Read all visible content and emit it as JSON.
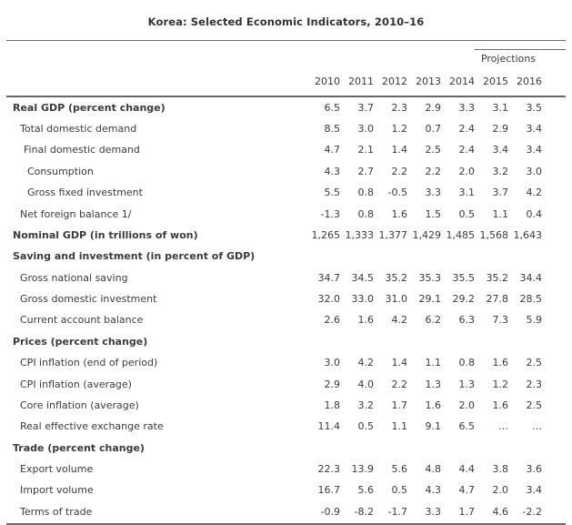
{
  "title": "Korea: Selected Economic Indicators, 2010–16",
  "colors": {
    "rule": "#6e6e6e",
    "text": "#3b3b3b",
    "background": "#ffffff"
  },
  "table": {
    "projections_label": "Projections",
    "years": [
      "2010",
      "2011",
      "2012",
      "2013",
      "2014",
      "2015",
      "2016"
    ],
    "rows": [
      {
        "label": "Real GDP (percent change)",
        "bold": true,
        "indent": 0,
        "values": [
          "6.5",
          "3.7",
          "2.3",
          "2.9",
          "3.3",
          "3.1",
          "3.5"
        ]
      },
      {
        "label": "Total domestic demand",
        "bold": false,
        "indent": 1,
        "values": [
          "8.5",
          "3.0",
          "1.2",
          "0.7",
          "2.4",
          "2.9",
          "3.4"
        ]
      },
      {
        "label": "Final domestic demand",
        "bold": false,
        "indent": 2,
        "values": [
          "4.7",
          "2.1",
          "1.4",
          "2.5",
          "2.4",
          "3.4",
          "3.4"
        ]
      },
      {
        "label": "Consumption",
        "bold": false,
        "indent": 3,
        "values": [
          "4.3",
          "2.7",
          "2.2",
          "2.2",
          "2.0",
          "3.2",
          "3.0"
        ]
      },
      {
        "label": "Gross fixed investment",
        "bold": false,
        "indent": 3,
        "values": [
          "5.5",
          "0.8",
          "-0.5",
          "3.3",
          "3.1",
          "3.7",
          "4.2"
        ]
      },
      {
        "label": "Net foreign balance 1/",
        "bold": false,
        "indent": 1,
        "values": [
          "-1.3",
          "0.8",
          "1.6",
          "1.5",
          "0.5",
          "1.1",
          "0.4"
        ]
      },
      {
        "label": "Nominal GDP (in trillions of won)",
        "bold": true,
        "indent": 0,
        "values": [
          "1,265",
          "1,333",
          "1,377",
          "1,429",
          "1,485",
          "1,568",
          "1,643"
        ]
      },
      {
        "label": "Saving and investment (in percent of GDP)",
        "bold": true,
        "indent": 0,
        "values": [
          "",
          "",
          "",
          "",
          "",
          "",
          ""
        ]
      },
      {
        "label": "Gross national saving",
        "bold": false,
        "indent": 1,
        "values": [
          "34.7",
          "34.5",
          "35.2",
          "35.3",
          "35.5",
          "35.2",
          "34.4"
        ]
      },
      {
        "label": "Gross domestic investment",
        "bold": false,
        "indent": 1,
        "values": [
          "32.0",
          "33.0",
          "31.0",
          "29.1",
          "29.2",
          "27.8",
          "28.5"
        ]
      },
      {
        "label": "Current account balance",
        "bold": false,
        "indent": 1,
        "values": [
          "2.6",
          "1.6",
          "4.2",
          "6.2",
          "6.3",
          "7.3",
          "5.9"
        ]
      },
      {
        "label": "Prices (percent change)",
        "bold": true,
        "indent": 0,
        "values": [
          "",
          "",
          "",
          "",
          "",
          "",
          ""
        ]
      },
      {
        "label": "CPI inflation (end of period)",
        "bold": false,
        "indent": 1,
        "values": [
          "3.0",
          "4.2",
          "1.4",
          "1.1",
          "0.8",
          "1.6",
          "2.5"
        ]
      },
      {
        "label": "CPI inflation (average)",
        "bold": false,
        "indent": 1,
        "values": [
          "2.9",
          "4.0",
          "2.2",
          "1.3",
          "1.3",
          "1.2",
          "2.3"
        ]
      },
      {
        "label": "Core inflation (average)",
        "bold": false,
        "indent": 1,
        "values": [
          "1.8",
          "3.2",
          "1.7",
          "1.6",
          "2.0",
          "1.6",
          "2.5"
        ]
      },
      {
        "label": "Real effective exchange rate",
        "bold": false,
        "indent": 1,
        "values": [
          "11.4",
          "0.5",
          "1.1",
          "9.1",
          "6.5",
          "…",
          "…"
        ]
      },
      {
        "label": "Trade (percent change)",
        "bold": true,
        "indent": 0,
        "values": [
          "",
          "",
          "",
          "",
          "",
          "",
          ""
        ]
      },
      {
        "label": "Export volume",
        "bold": false,
        "indent": 1,
        "values": [
          "22.3",
          "13.9",
          "5.6",
          "4.8",
          "4.4",
          "3.8",
          "3.6"
        ]
      },
      {
        "label": "Import volume",
        "bold": false,
        "indent": 1,
        "values": [
          "16.7",
          "5.6",
          "0.5",
          "4.3",
          "4.7",
          "2.0",
          "3.4"
        ]
      },
      {
        "label": "Terms of trade",
        "bold": false,
        "indent": 1,
        "values": [
          "-0.9",
          "-8.2",
          "-1.7",
          "3.3",
          "1.7",
          "4.6",
          "-2.2"
        ]
      }
    ]
  }
}
